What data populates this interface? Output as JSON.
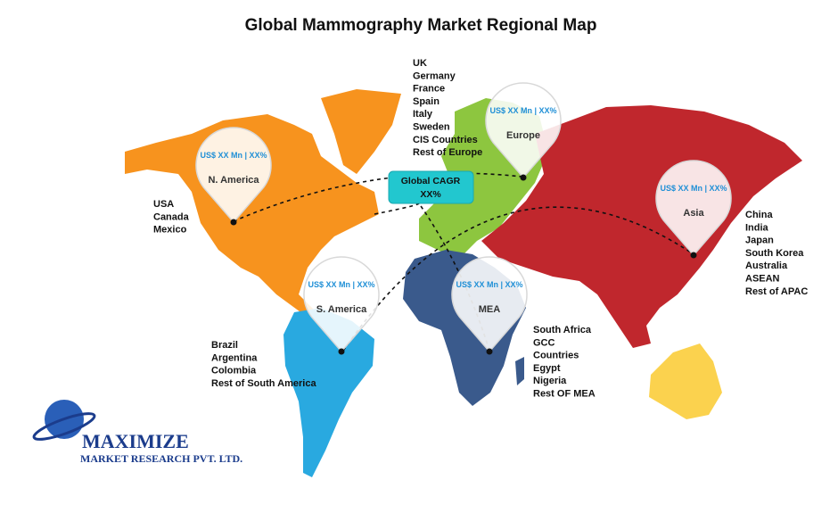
{
  "title": "Global Mammography Market Regional Map",
  "cagr": {
    "label": "Global CAGR",
    "value": "XX%"
  },
  "regions": [
    {
      "name": "N. America",
      "value_label": "US$ XX Mn | XX%",
      "countries": [
        "USA",
        "Canada",
        "Mexico"
      ]
    },
    {
      "name": "Europe",
      "value_label": "US$ XX Mn | XX%",
      "countries": [
        "UK",
        "Germany",
        "France",
        "Spain",
        "Italy",
        "Sweden",
        "CIS Countries",
        "Rest of Europe"
      ]
    },
    {
      "name": "Asia",
      "value_label": "US$ XX Mn | XX%",
      "countries": [
        "China",
        "India",
        "Japan",
        "South Korea",
        "Australia",
        "ASEAN",
        "Rest of APAC"
      ]
    },
    {
      "name": "S. America",
      "value_label": "US$ XX Mn | XX%",
      "countries": [
        "Brazil",
        "Argentina",
        "Colombia",
        "Rest of South America"
      ]
    },
    {
      "name": "MEA",
      "value_label": "US$ XX Mn | XX%",
      "countries": [
        "South Africa",
        "GCC",
        "Countries",
        "Egypt",
        "Nigeria",
        "Rest OF MEA"
      ]
    }
  ],
  "logo": {
    "name": "MAXIMIZE",
    "subtitle": "MARKET RESEARCH PVT. LTD."
  }
}
